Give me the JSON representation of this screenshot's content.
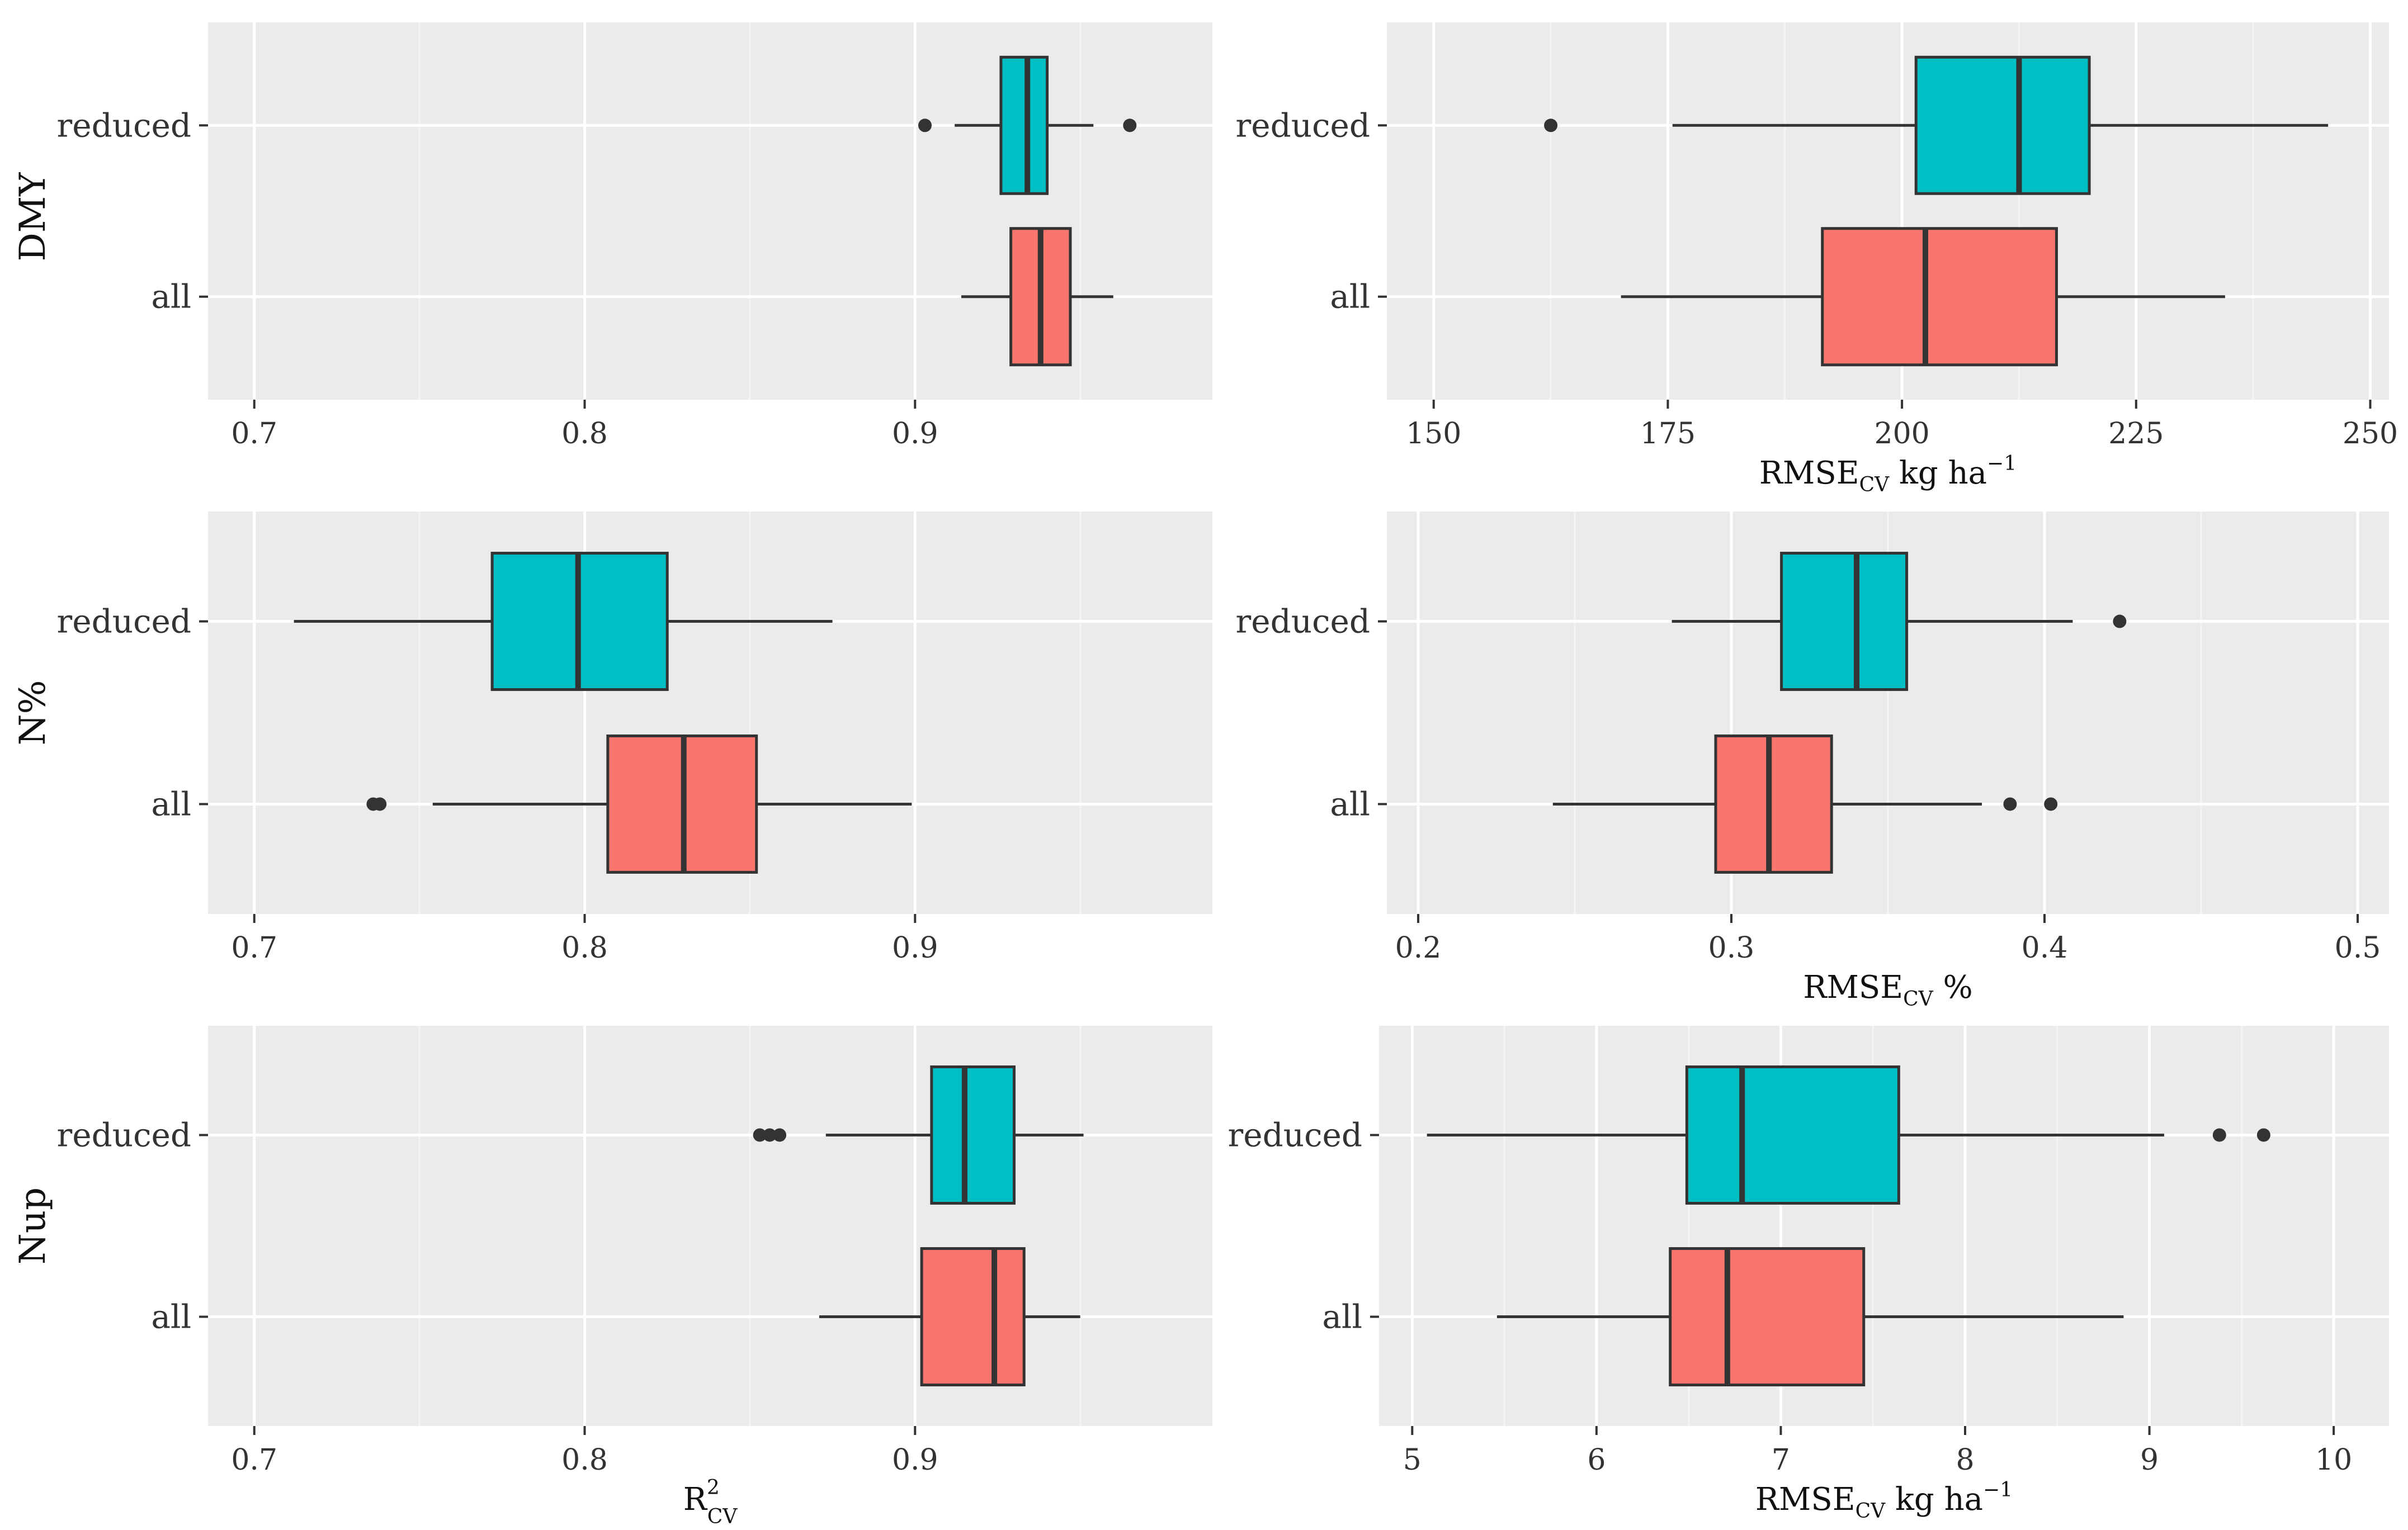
{
  "figure": {
    "colors": {
      "panel_bg": "#EBEBEB",
      "grid_major": "#FFFFFF",
      "grid_minor": "#F4F4F4",
      "box_edge": "#333333",
      "outlier": "#333333"
    }
  },
  "row_labels": [
    "DMY",
    "N%",
    "Nup"
  ],
  "chart_data": [
    {
      "type": "boxplot",
      "panel": "DMY-R2",
      "categories": [
        "reduced",
        "all"
      ],
      "xlim": [
        0.686,
        0.99
      ],
      "xticks": [
        0.7,
        0.8,
        0.9
      ],
      "xtick_labels": [
        "0.7",
        "0.8",
        "0.9"
      ],
      "xlabel": "",
      "series": [
        {
          "name": "reduced",
          "color": "#00BFC4",
          "whisker_low": 0.912,
          "q1": 0.926,
          "median": 0.934,
          "q3": 0.94,
          "whisker_high": 0.954,
          "outliers": [
            0.903,
            0.965
          ]
        },
        {
          "name": "all",
          "color": "#F8766D",
          "whisker_low": 0.914,
          "q1": 0.929,
          "median": 0.938,
          "q3": 0.947,
          "whisker_high": 0.96,
          "outliers": []
        }
      ]
    },
    {
      "type": "boxplot",
      "panel": "DMY-RMSE",
      "categories": [
        "reduced",
        "all"
      ],
      "xlim": [
        145,
        252
      ],
      "xticks": [
        150,
        175,
        200,
        225,
        250
      ],
      "xtick_labels": [
        "150",
        "175",
        "200",
        "225",
        "250"
      ],
      "xlabel": {
        "main": "RMSE",
        "sub": "CV",
        "rest": " kg ha",
        "sup": "−1"
      },
      "series": [
        {
          "name": "reduced",
          "color": "#00BFC4",
          "whisker_low": 175.5,
          "q1": 201.5,
          "median": 212.5,
          "q3": 220.0,
          "whisker_high": 245.5,
          "outliers": [
            162.5
          ]
        },
        {
          "name": "all",
          "color": "#F8766D",
          "whisker_low": 170.0,
          "q1": 191.5,
          "median": 202.5,
          "q3": 216.5,
          "whisker_high": 234.5,
          "outliers": []
        }
      ]
    },
    {
      "type": "boxplot",
      "panel": "N%-R2",
      "categories": [
        "reduced",
        "all"
      ],
      "xlim": [
        0.686,
        0.99
      ],
      "xticks": [
        0.7,
        0.8,
        0.9
      ],
      "xtick_labels": [
        "0.7",
        "0.8",
        "0.9"
      ],
      "xlabel": "",
      "series": [
        {
          "name": "reduced",
          "color": "#00BFC4",
          "whisker_low": 0.712,
          "q1": 0.772,
          "median": 0.798,
          "q3": 0.825,
          "whisker_high": 0.875,
          "outliers": []
        },
        {
          "name": "all",
          "color": "#F8766D",
          "whisker_low": 0.754,
          "q1": 0.807,
          "median": 0.83,
          "q3": 0.852,
          "whisker_high": 0.899,
          "outliers": [
            0.736,
            0.738
          ]
        }
      ]
    },
    {
      "type": "boxplot",
      "panel": "N%-RMSE",
      "categories": [
        "reduced",
        "all"
      ],
      "xlim": [
        0.19,
        0.51
      ],
      "xticks": [
        0.2,
        0.3,
        0.4,
        0.5
      ],
      "xtick_labels": [
        "0.2",
        "0.3",
        "0.4",
        "0.5"
      ],
      "xlabel": {
        "main": "RMSE",
        "sub": "CV",
        "rest": " %",
        "sup": ""
      },
      "series": [
        {
          "name": "reduced",
          "color": "#00BFC4",
          "whisker_low": 0.281,
          "q1": 0.316,
          "median": 0.34,
          "q3": 0.356,
          "whisker_high": 0.409,
          "outliers": [
            0.424
          ]
        },
        {
          "name": "all",
          "color": "#F8766D",
          "whisker_low": 0.243,
          "q1": 0.295,
          "median": 0.312,
          "q3": 0.332,
          "whisker_high": 0.38,
          "outliers": [
            0.389,
            0.402
          ]
        }
      ]
    },
    {
      "type": "boxplot",
      "panel": "Nup-R2",
      "categories": [
        "reduced",
        "all"
      ],
      "xlim": [
        0.686,
        0.99
      ],
      "xticks": [
        0.7,
        0.8,
        0.9
      ],
      "xtick_labels": [
        "0.7",
        "0.8",
        "0.9"
      ],
      "xlabel": {
        "main": "R",
        "sub": "CV",
        "rest": "",
        "sup": "2"
      },
      "series": [
        {
          "name": "reduced",
          "color": "#00BFC4",
          "whisker_low": 0.873,
          "q1": 0.905,
          "median": 0.915,
          "q3": 0.93,
          "whisker_high": 0.951,
          "outliers": [
            0.853,
            0.856,
            0.859
          ]
        },
        {
          "name": "all",
          "color": "#F8766D",
          "whisker_low": 0.871,
          "q1": 0.902,
          "median": 0.924,
          "q3": 0.933,
          "whisker_high": 0.95,
          "outliers": []
        }
      ]
    },
    {
      "type": "boxplot",
      "panel": "Nup-RMSE",
      "categories": [
        "reduced",
        "all"
      ],
      "xlim": [
        4.82,
        10.3
      ],
      "xticks": [
        5,
        6,
        7,
        8,
        9,
        10
      ],
      "xtick_labels": [
        "5",
        "6",
        "7",
        "8",
        "9",
        "10"
      ],
      "xlabel": {
        "main": "RMSE",
        "sub": "CV",
        "rest": " kg ha",
        "sup": "−1"
      },
      "series": [
        {
          "name": "reduced",
          "color": "#00BFC4",
          "whisker_low": 5.08,
          "q1": 6.49,
          "median": 6.79,
          "q3": 7.64,
          "whisker_high": 9.08,
          "outliers": [
            9.38,
            9.62
          ]
        },
        {
          "name": "all",
          "color": "#F8766D",
          "whisker_low": 5.46,
          "q1": 6.4,
          "median": 6.71,
          "q3": 7.45,
          "whisker_high": 8.86,
          "outliers": []
        }
      ]
    }
  ]
}
